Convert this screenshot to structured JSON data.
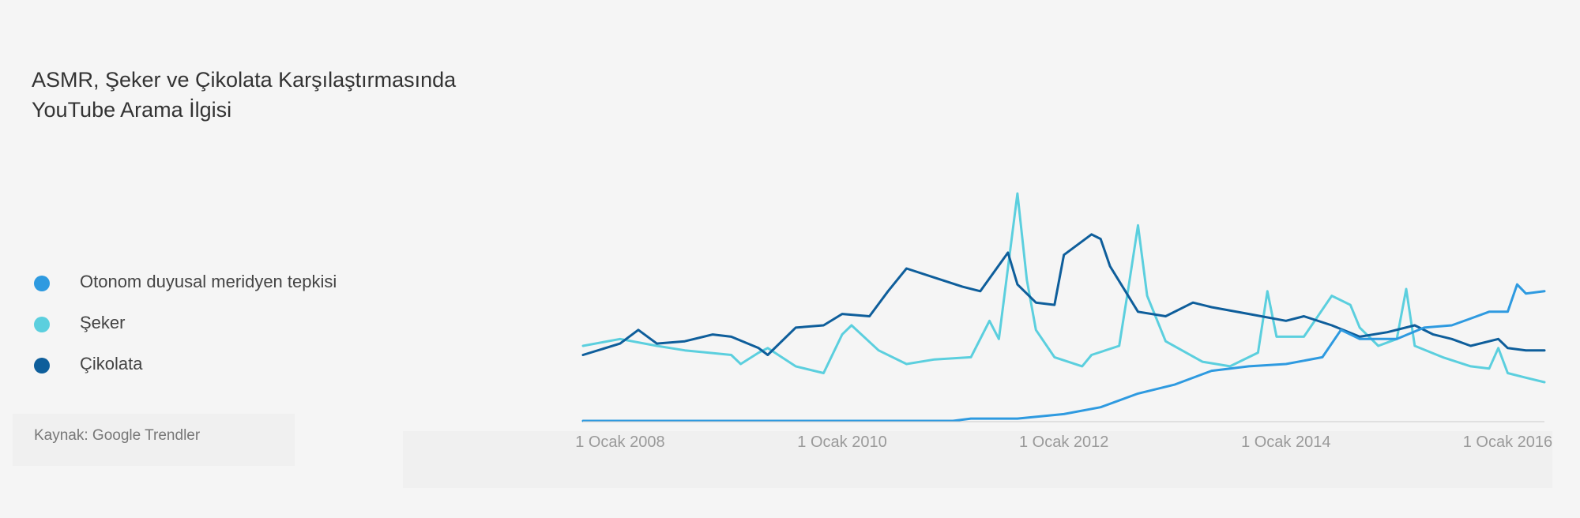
{
  "page": {
    "title_line1": "ASMR, Şeker ve Çikolata Karşılaştırmasında",
    "title_line2": "YouTube Arama İlgisi",
    "source_text": "Kaynak: Google Trendler"
  },
  "legend": [
    {
      "label": "Otonom duyusal meridyen tepkisi",
      "color": "#2e9ae0"
    },
    {
      "label": "Şeker",
      "color": "#5bcfde"
    },
    {
      "label": "Çikolata",
      "color": "#0e5e9b"
    }
  ],
  "chart_data": {
    "type": "line",
    "title": "ASMR, Şeker ve Çikolata Karşılaştırmasında YouTube Arama İlgisi",
    "xlabel": "",
    "ylabel": "",
    "x_range": [
      "2007-09-01",
      "2016-05-01"
    ],
    "x_ticks": [
      {
        "date": "2008-01-01",
        "label": "1 Ocak 2008"
      },
      {
        "date": "2010-01-01",
        "label": "1 Ocak 2010"
      },
      {
        "date": "2012-01-01",
        "label": "1 Ocak 2012"
      },
      {
        "date": "2014-01-01",
        "label": "1 Ocak 2014"
      },
      {
        "date": "2016-01-01",
        "label": "1 Ocak 2016"
      }
    ],
    "ylim": [
      0,
      100
    ],
    "grid": false,
    "legend_position": "left",
    "series": [
      {
        "name": "Otonom duyusal meridyen tepkisi",
        "color": "#2e9ae0",
        "points": [
          [
            "2007-09-01",
            0
          ],
          [
            "2011-01-01",
            0
          ],
          [
            "2011-03-01",
            1
          ],
          [
            "2011-08-01",
            1
          ],
          [
            "2012-01-01",
            3
          ],
          [
            "2012-05-01",
            6
          ],
          [
            "2012-09-01",
            12
          ],
          [
            "2013-01-01",
            16
          ],
          [
            "2013-05-01",
            22
          ],
          [
            "2013-09-01",
            24
          ],
          [
            "2014-01-01",
            25
          ],
          [
            "2014-05-01",
            28
          ],
          [
            "2014-07-01",
            40
          ],
          [
            "2014-09-01",
            36
          ],
          [
            "2015-01-01",
            36
          ],
          [
            "2015-04-01",
            41
          ],
          [
            "2015-07-01",
            42
          ],
          [
            "2015-09-01",
            45
          ],
          [
            "2015-11-01",
            48
          ],
          [
            "2016-01-01",
            48
          ],
          [
            "2016-02-01",
            60
          ],
          [
            "2016-03-01",
            56
          ],
          [
            "2016-05-01",
            57
          ]
        ]
      },
      {
        "name": "Şeker",
        "color": "#5bcfde",
        "points": [
          [
            "2007-09-01",
            33
          ],
          [
            "2008-01-01",
            36
          ],
          [
            "2008-05-01",
            33
          ],
          [
            "2008-08-01",
            31
          ],
          [
            "2009-01-01",
            29
          ],
          [
            "2009-02-01",
            25
          ],
          [
            "2009-04-01",
            30
          ],
          [
            "2009-05-01",
            32
          ],
          [
            "2009-08-01",
            24
          ],
          [
            "2009-11-01",
            21
          ],
          [
            "2010-01-01",
            38
          ],
          [
            "2010-02-01",
            42
          ],
          [
            "2010-05-01",
            31
          ],
          [
            "2010-08-01",
            25
          ],
          [
            "2010-11-01",
            27
          ],
          [
            "2011-03-01",
            28
          ],
          [
            "2011-05-01",
            44
          ],
          [
            "2011-06-01",
            36
          ],
          [
            "2011-08-01",
            100
          ],
          [
            "2011-09-01",
            62
          ],
          [
            "2011-10-01",
            40
          ],
          [
            "2011-12-01",
            28
          ],
          [
            "2012-03-01",
            24
          ],
          [
            "2012-04-01",
            29
          ],
          [
            "2012-07-01",
            33
          ],
          [
            "2012-08-01",
            59
          ],
          [
            "2012-09-01",
            86
          ],
          [
            "2012-10-01",
            55
          ],
          [
            "2012-12-01",
            35
          ],
          [
            "2013-04-01",
            26
          ],
          [
            "2013-07-01",
            24
          ],
          [
            "2013-10-01",
            30
          ],
          [
            "2013-11-01",
            57
          ],
          [
            "2013-12-01",
            37
          ],
          [
            "2014-03-01",
            37
          ],
          [
            "2014-06-01",
            55
          ],
          [
            "2014-08-01",
            51
          ],
          [
            "2014-09-01",
            41
          ],
          [
            "2014-11-01",
            33
          ],
          [
            "2015-01-01",
            36
          ],
          [
            "2015-02-01",
            58
          ],
          [
            "2015-03-01",
            33
          ],
          [
            "2015-06-01",
            28
          ],
          [
            "2015-09-01",
            24
          ],
          [
            "2015-11-01",
            23
          ],
          [
            "2015-12-01",
            32
          ],
          [
            "2016-01-01",
            21
          ],
          [
            "2016-03-01",
            19
          ],
          [
            "2016-05-01",
            17
          ]
        ]
      },
      {
        "name": "Çikolata",
        "color": "#0e5e9b",
        "points": [
          [
            "2007-09-01",
            29
          ],
          [
            "2008-01-01",
            34
          ],
          [
            "2008-03-01",
            40
          ],
          [
            "2008-05-01",
            34
          ],
          [
            "2008-08-01",
            35
          ],
          [
            "2008-11-01",
            38
          ],
          [
            "2009-01-01",
            37
          ],
          [
            "2009-04-01",
            32
          ],
          [
            "2009-05-01",
            29
          ],
          [
            "2009-08-01",
            41
          ],
          [
            "2009-11-01",
            42
          ],
          [
            "2010-01-01",
            47
          ],
          [
            "2010-04-01",
            46
          ],
          [
            "2010-06-01",
            57
          ],
          [
            "2010-08-01",
            67
          ],
          [
            "2010-11-01",
            63
          ],
          [
            "2011-02-01",
            59
          ],
          [
            "2011-04-01",
            57
          ],
          [
            "2011-07-01",
            74
          ],
          [
            "2011-08-01",
            60
          ],
          [
            "2011-10-01",
            52
          ],
          [
            "2011-12-01",
            51
          ],
          [
            "2012-01-01",
            73
          ],
          [
            "2012-04-01",
            82
          ],
          [
            "2012-05-01",
            80
          ],
          [
            "2012-06-01",
            68
          ],
          [
            "2012-09-01",
            48
          ],
          [
            "2012-12-01",
            46
          ],
          [
            "2013-03-01",
            52
          ],
          [
            "2013-05-01",
            50
          ],
          [
            "2013-09-01",
            47
          ],
          [
            "2014-01-01",
            44
          ],
          [
            "2014-03-01",
            46
          ],
          [
            "2014-06-01",
            42
          ],
          [
            "2014-09-01",
            37
          ],
          [
            "2014-12-01",
            39
          ],
          [
            "2015-03-01",
            42
          ],
          [
            "2015-05-01",
            38
          ],
          [
            "2015-07-01",
            36
          ],
          [
            "2015-09-01",
            33
          ],
          [
            "2015-12-01",
            36
          ],
          [
            "2016-01-01",
            32
          ],
          [
            "2016-03-01",
            31
          ],
          [
            "2016-05-01",
            31
          ]
        ]
      }
    ]
  }
}
